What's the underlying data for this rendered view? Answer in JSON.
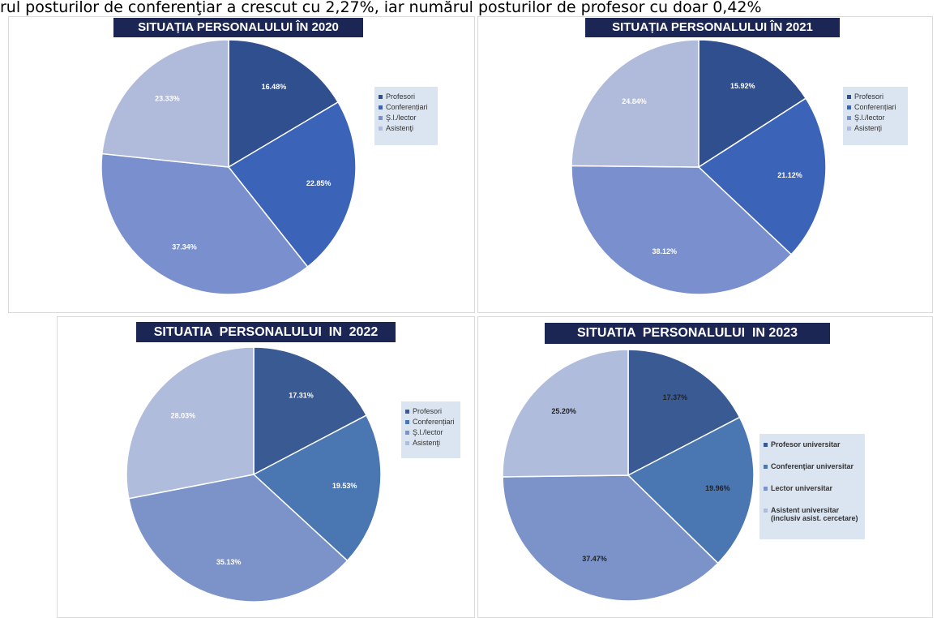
{
  "text_line": "rul posturilor de conferenţiar a crescut cu 2,27%, iar numărul posturilor de profesor cu doar 0,42%",
  "chart_data": [
    {
      "type": "pie",
      "title": "SITUAȚIA PERSONALULUI ÎN 2020",
      "categories": [
        "Profesori",
        "Conferențiari",
        "Ş.l./lector",
        "Asistenţi"
      ],
      "values": [
        16.48,
        22.85,
        37.34,
        23.33
      ],
      "value_labels": [
        "16.48%",
        "22.85%",
        "37.34%",
        "23.33%"
      ],
      "colors": [
        "#2f4f8f",
        "#3b64b8",
        "#7a8fce",
        "#b0bbdc"
      ]
    },
    {
      "type": "pie",
      "title": "SITUAȚIA PERSONALULUI ÎN 2021",
      "categories": [
        "Profesori",
        "Conferențiari",
        "Ş.l./lector",
        "Asistenţi"
      ],
      "values": [
        15.92,
        21.12,
        38.12,
        24.84
      ],
      "value_labels": [
        "15.92%",
        "21.12%",
        "38.12%",
        "24.84%"
      ],
      "colors": [
        "#2f4f8f",
        "#3b64b8",
        "#7a8fce",
        "#b0bbdc"
      ]
    },
    {
      "type": "pie",
      "title": "SITUATIA  PERSONALULUI  IN  2022",
      "categories": [
        "Profesori",
        "Conferențiari",
        "Ş.l./lector",
        "Asistenţi"
      ],
      "values": [
        17.31,
        19.53,
        35.13,
        28.03
      ],
      "value_labels": [
        "17.31%",
        "19.53%",
        "35.13%",
        "28.03%"
      ],
      "colors": [
        "#3a5a94",
        "#4a76b2",
        "#7b93c8",
        "#b0bcdb"
      ]
    },
    {
      "type": "pie",
      "title": "SITUATIA  PERSONALULUI  IN 2023",
      "categories": [
        "Profesor universitar",
        "Conferenţiar universitar",
        "Lector universitar",
        "Asistent universitar (inclusiv asist. cercetare)"
      ],
      "values": [
        17.37,
        19.96,
        37.47,
        25.2
      ],
      "value_labels": [
        "17.37%",
        "19.96%",
        "37.47%",
        "25.20%"
      ],
      "colors": [
        "#3a5a94",
        "#4a76b2",
        "#7b93c8",
        "#b0bcdb"
      ]
    }
  ]
}
